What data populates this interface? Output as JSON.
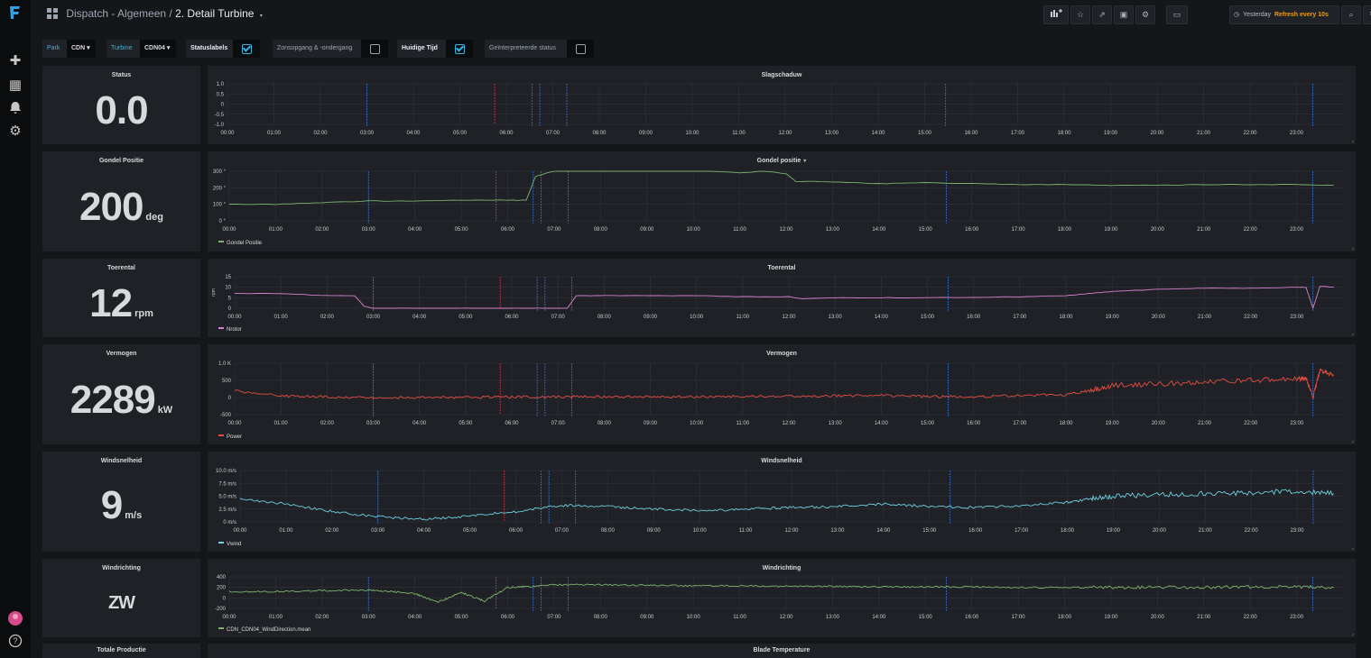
{
  "breadcrumb": {
    "folder": "Dispatch - Algemeen /",
    "title": "2. Detail Turbine"
  },
  "timepicker": {
    "range": "Yesterday",
    "refresh": "Refresh every 10s"
  },
  "variables": {
    "park": {
      "label": "Park",
      "value": "CDN"
    },
    "turbine": {
      "label": "Turbine",
      "value": "CDN04"
    },
    "statuslabels": {
      "label": "Statuslabels",
      "checked": true
    },
    "zonsopgang": {
      "label": "Zonsopgang & -ondergang",
      "checked": false
    },
    "huidige_tijd": {
      "label": "Huidige Tijd",
      "checked": true
    },
    "geinterpreteerde": {
      "label": "Geïnterpreteerde status",
      "checked": false
    }
  },
  "stats": [
    {
      "title": "Status",
      "value": "0.0",
      "unit": ""
    },
    {
      "title": "Gondel Positie",
      "value": "200",
      "unit": "deg"
    },
    {
      "title": "Toerental",
      "value": "12",
      "unit": "rpm"
    },
    {
      "title": "Vermogen",
      "value": "2289",
      "unit": "kW"
    },
    {
      "title": "Windsnelheid",
      "value": "9",
      "unit": "m/s"
    },
    {
      "title": "Windrichting",
      "value": "ZW",
      "unit": ""
    },
    {
      "title": "Totale Productie",
      "value": "",
      "unit": ""
    }
  ],
  "x_ticks": [
    "00:00",
    "01:00",
    "02:00",
    "03:00",
    "04:00",
    "05:00",
    "06:00",
    "07:00",
    "08:00",
    "09:00",
    "10:00",
    "11:00",
    "12:00",
    "13:00",
    "14:00",
    "15:00",
    "16:00",
    "17:00",
    "18:00",
    "19:00",
    "20:00",
    "21:00",
    "22:00",
    "23:00"
  ],
  "colors": {
    "bg": "#141619",
    "panel": "#1f2126",
    "grid": "#31343a",
    "text": "#d8d9da",
    "marker_red": "#e02f44",
    "marker_blue": "#3274d9",
    "accent_orange": "#eb9b16"
  },
  "chart_data": [
    {
      "type": "line",
      "title": "Slagschaduw",
      "ylim": [
        -1,
        1
      ],
      "yticks": [
        "1.0",
        "0.5",
        "0",
        "-0.5",
        "-1.0"
      ],
      "series": [],
      "legend": ""
    },
    {
      "type": "line",
      "title": "Gondel positie",
      "ylim": [
        0,
        300
      ],
      "yticks": [
        "300 °",
        "200 °",
        "100 °",
        "0 °"
      ],
      "legend": "Gondel Positie",
      "color": "#7eb26d",
      "series": [
        {
          "name": "Gondel Positie",
          "x": [
            0,
            1,
            2,
            3,
            4,
            5,
            6,
            6.4,
            6.6,
            7,
            8,
            9,
            10,
            11,
            11.5,
            12,
            12.2,
            13,
            14,
            15,
            16,
            17,
            18,
            19,
            20,
            21,
            22,
            23,
            23.8
          ],
          "values": [
            100,
            100,
            110,
            120,
            120,
            125,
            125,
            125,
            270,
            300,
            310,
            320,
            310,
            290,
            300,
            285,
            240,
            235,
            225,
            230,
            225,
            220,
            220,
            215,
            215,
            220,
            220,
            220,
            215
          ]
        }
      ]
    },
    {
      "type": "line",
      "title": "Toerental",
      "ylim": [
        0,
        15
      ],
      "yticks": [
        "15",
        "10",
        "5",
        "0"
      ],
      "ylabel": "rpm",
      "legend": "Nrotor",
      "color": "#d683ce",
      "series": [
        {
          "name": "Nrotor",
          "x": [
            0,
            1,
            2,
            2.6,
            2.8,
            3,
            4,
            5,
            6,
            6.5,
            7,
            7.2,
            7.4,
            8,
            9,
            10,
            11,
            12,
            12.3,
            13,
            14,
            15,
            16,
            17,
            18,
            18.5,
            19,
            20,
            21,
            22,
            23,
            23.2,
            23.35,
            23.5,
            23.8
          ],
          "values": [
            7,
            7,
            6,
            6,
            1,
            0,
            0,
            0,
            0,
            0,
            0,
            0,
            6,
            6,
            6,
            6,
            5.5,
            5.5,
            4.5,
            5,
            5,
            5,
            5.2,
            5.5,
            6,
            7,
            8,
            9,
            9.5,
            9.5,
            10,
            10,
            0,
            10.5,
            10
          ]
        }
      ]
    },
    {
      "type": "line",
      "title": "Vermogen",
      "ylim": [
        -500,
        1000
      ],
      "yticks": [
        "1.0 K",
        "500",
        "0",
        "-500"
      ],
      "legend": "Power",
      "color": "#e24d42",
      "series": [
        {
          "name": "Power",
          "x": [
            0,
            1,
            2,
            3,
            4,
            5,
            6,
            7,
            8,
            9,
            10,
            11,
            12,
            13,
            14,
            15,
            16,
            17,
            18,
            18.5,
            19,
            20,
            21,
            22,
            23,
            23.2,
            23.35,
            23.5,
            23.8
          ],
          "values": [
            200,
            50,
            20,
            0,
            0,
            5,
            10,
            20,
            20,
            20,
            25,
            30,
            40,
            50,
            60,
            30,
            20,
            60,
            80,
            200,
            350,
            400,
            450,
            500,
            550,
            550,
            0,
            800,
            650
          ]
        }
      ]
    },
    {
      "type": "line",
      "title": "Windsnelheid",
      "ylim": [
        0,
        10
      ],
      "yticks": [
        "10.0 m/s",
        "7.5 m/s",
        "5.0 m/s",
        "2.5 m/s",
        "0 m/s"
      ],
      "legend": "Vwind",
      "color": "#6ed0e0",
      "series": [
        {
          "name": "Vwind",
          "x": [
            0,
            1,
            2,
            3,
            4,
            5,
            6,
            7,
            8,
            9,
            10,
            11,
            12,
            13,
            14,
            15,
            16,
            17,
            18,
            18.5,
            19,
            20,
            21,
            22,
            23,
            23.8
          ],
          "values": [
            4.5,
            3.5,
            2,
            1,
            0.5,
            1.2,
            2,
            3.2,
            3,
            2.5,
            2.2,
            2.5,
            2.8,
            3,
            3.5,
            3,
            2.8,
            3.2,
            3.8,
            4.5,
            5,
            5.3,
            5.5,
            5.7,
            6,
            5.5
          ]
        }
      ]
    },
    {
      "type": "line",
      "title": "Windrichting",
      "ylim": [
        -200,
        400
      ],
      "yticks": [
        "400",
        "200",
        "0",
        "-200"
      ],
      "legend": "CDN_CDN04_WindDirection.mean",
      "color": "#7eb26d",
      "series": [
        {
          "name": "CDN_CDN04_WindDirection.mean",
          "x": [
            0,
            1,
            2,
            3,
            3.5,
            4,
            4.5,
            5,
            5.5,
            6,
            6.5,
            7,
            8,
            9,
            10,
            11,
            12,
            13,
            14,
            15,
            16,
            17,
            18,
            19,
            20,
            21,
            22,
            23,
            23.8
          ],
          "values": [
            120,
            120,
            140,
            150,
            120,
            80,
            -80,
            100,
            -60,
            200,
            220,
            250,
            250,
            240,
            230,
            230,
            220,
            220,
            210,
            210,
            210,
            200,
            200,
            200,
            200,
            200,
            210,
            210,
            200
          ]
        }
      ]
    },
    {
      "type": "line",
      "title": "Blade Temperature",
      "series": [],
      "legend": ""
    }
  ]
}
